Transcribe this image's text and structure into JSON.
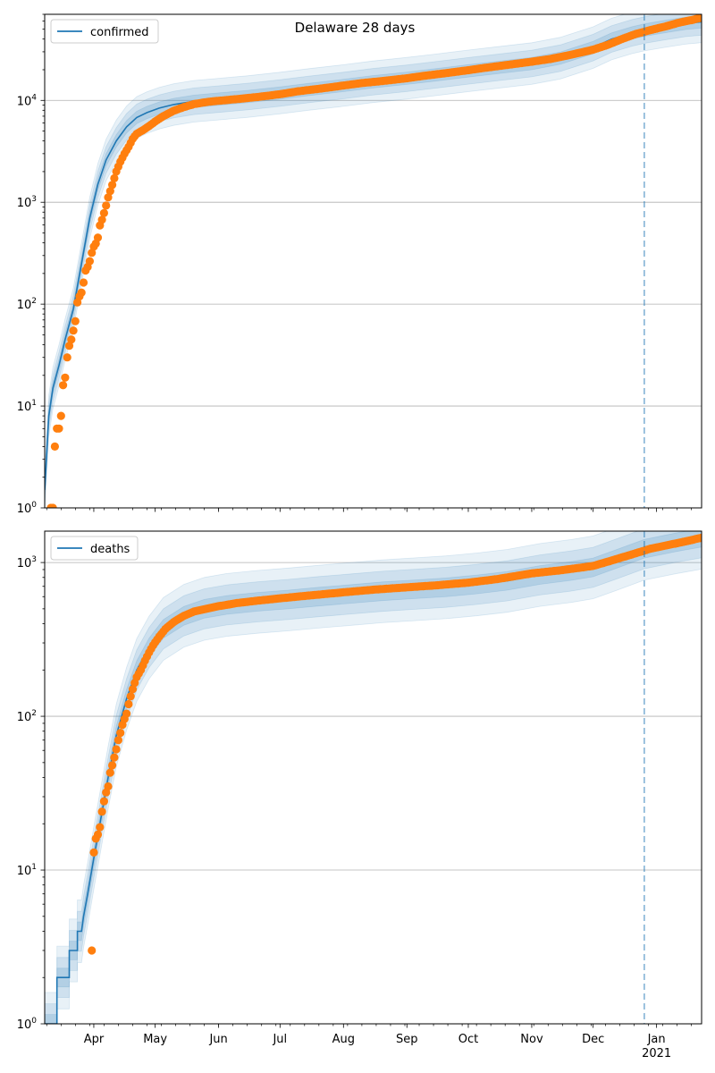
{
  "figure": {
    "title": "Delaware 28 days",
    "colors": {
      "model_line": "#1f77b4",
      "observed_points": "#ff7f0e",
      "band": "#1f77b4",
      "forecast_line": "#1f77b4",
      "grid": "#b0b0b0"
    }
  },
  "chart_data": [
    {
      "type": "line",
      "title": "Delaware 28 days",
      "xlabel": "",
      "ylabel": "",
      "yscale": "log",
      "ylim": [
        1,
        70000
      ],
      "xlim": [
        "2020-03-08",
        "2021-01-23"
      ],
      "forecast_start": "2020-12-26",
      "legend": {
        "entries": [
          "confirmed"
        ],
        "placement": "upper-left"
      },
      "grid": "horizontal",
      "x_tick_labels": [],
      "y_tick_labels": [
        {
          "value": 1,
          "mantissa": "10",
          "exp": "0"
        },
        {
          "value": 10,
          "mantissa": "10",
          "exp": "1"
        },
        {
          "value": 100,
          "mantissa": "10",
          "exp": "2"
        },
        {
          "value": 1000,
          "mantissa": "10",
          "exp": "3"
        },
        {
          "value": 10000,
          "mantissa": "10",
          "exp": "4"
        }
      ],
      "series": [
        {
          "name": "confirmed",
          "role": "model",
          "x": [
            "2020-03-08",
            "2020-03-10",
            "2020-03-12",
            "2020-03-15",
            "2020-03-18",
            "2020-03-22",
            "2020-03-26",
            "2020-03-30",
            "2020-04-03",
            "2020-04-07",
            "2020-04-12",
            "2020-04-17",
            "2020-04-22",
            "2020-04-27",
            "2020-05-03",
            "2020-05-10",
            "2020-05-20",
            "2020-06-01",
            "2020-06-15",
            "2020-07-01",
            "2020-07-15",
            "2020-08-01",
            "2020-08-15",
            "2020-09-01",
            "2020-09-15",
            "2020-10-01",
            "2020-10-15",
            "2020-11-01",
            "2020-11-15",
            "2020-12-01",
            "2020-12-10",
            "2020-12-20",
            "2020-12-26",
            "2021-01-05",
            "2021-01-15",
            "2021-01-23"
          ],
          "y": [
            1.5,
            8,
            15,
            25,
            45,
            90,
            250,
            700,
            1500,
            2600,
            4000,
            5500,
            6800,
            7600,
            8400,
            9100,
            9800,
            10300,
            10900,
            11800,
            12800,
            14000,
            15200,
            16500,
            17800,
            19500,
            21000,
            23000,
            26000,
            33000,
            40000,
            46000,
            49000,
            53000,
            57000,
            59000
          ]
        },
        {
          "name": "",
          "role": "observed",
          "x": [
            "2020-03-11",
            "2020-03-12",
            "2020-03-13",
            "2020-03-14",
            "2020-03-15",
            "2020-03-16",
            "2020-03-17",
            "2020-03-18",
            "2020-03-19",
            "2020-03-20",
            "2020-03-21",
            "2020-03-22",
            "2020-03-23",
            "2020-03-24",
            "2020-03-25",
            "2020-03-26",
            "2020-03-27",
            "2020-03-28",
            "2020-03-29",
            "2020-03-30",
            "2020-03-31",
            "2020-04-01",
            "2020-04-02",
            "2020-04-03",
            "2020-04-04",
            "2020-04-05",
            "2020-04-06",
            "2020-04-07",
            "2020-04-08",
            "2020-04-10",
            "2020-04-12",
            "2020-04-14",
            "2020-04-16",
            "2020-04-18",
            "2020-04-20",
            "2020-04-22",
            "2020-04-25",
            "2020-04-28",
            "2020-05-01",
            "2020-05-05",
            "2020-05-10",
            "2020-05-15",
            "2020-05-20",
            "2020-05-27",
            "2020-06-03",
            "2020-06-10",
            "2020-06-20",
            "2020-07-01",
            "2020-07-10",
            "2020-07-20",
            "2020-08-01",
            "2020-08-10",
            "2020-08-20",
            "2020-09-01",
            "2020-09-10",
            "2020-09-20",
            "2020-10-01",
            "2020-10-10",
            "2020-10-20",
            "2020-11-01",
            "2020-11-10",
            "2020-11-20",
            "2020-12-01",
            "2020-12-08",
            "2020-12-15",
            "2020-12-22",
            "2020-12-29",
            "2021-01-05",
            "2021-01-12",
            "2021-01-19",
            "2021-01-23"
          ],
          "y": [
            1,
            1,
            4,
            6,
            6,
            8,
            16,
            19,
            30,
            39,
            45,
            55,
            68,
            104,
            119,
            130,
            163,
            214,
            232,
            264,
            319,
            368,
            393,
            450,
            593,
            673,
            783,
            928,
            1116,
            1479,
            2000,
            2500,
            3000,
            3500,
            4200,
            4700,
            5100,
            5600,
            6200,
            7000,
            7900,
            8600,
            9200,
            9700,
            10000,
            10300,
            10800,
            11500,
            12300,
            13000,
            14000,
            14800,
            15500,
            16500,
            17500,
            18500,
            19800,
            21000,
            22300,
            24000,
            25500,
            28000,
            31500,
            35000,
            40000,
            45000,
            49000,
            53000,
            58000,
            62000,
            65000
          ]
        }
      ]
    },
    {
      "type": "line",
      "title": "",
      "xlabel": "",
      "ylabel": "",
      "yscale": "log",
      "ylim": [
        1,
        1600
      ],
      "xlim": [
        "2020-03-08",
        "2021-01-23"
      ],
      "forecast_start": "2020-12-26",
      "legend": {
        "entries": [
          "deaths"
        ],
        "placement": "upper-left"
      },
      "grid": "horizontal",
      "x_tick_labels": [
        "Apr",
        "May",
        "Jun",
        "Jul",
        "Aug",
        "Sep",
        "Oct",
        "Nov",
        "Dec",
        "Jan\n2021"
      ],
      "y_tick_labels": [
        {
          "value": 1,
          "mantissa": "10",
          "exp": "0"
        },
        {
          "value": 10,
          "mantissa": "10",
          "exp": "1"
        },
        {
          "value": 100,
          "mantissa": "10",
          "exp": "2"
        },
        {
          "value": 1000,
          "mantissa": "10",
          "exp": "3"
        }
      ],
      "series": [
        {
          "name": "deaths",
          "role": "model",
          "x": [
            "2020-03-08",
            "2020-03-14",
            "2020-03-14",
            "2020-03-20",
            "2020-03-20",
            "2020-03-24",
            "2020-03-24",
            "2020-03-26",
            "2020-03-27",
            "2020-03-29",
            "2020-04-01",
            "2020-04-04",
            "2020-04-08",
            "2020-04-12",
            "2020-04-17",
            "2020-04-22",
            "2020-04-28",
            "2020-05-05",
            "2020-05-15",
            "2020-05-25",
            "2020-06-05",
            "2020-06-20",
            "2020-07-05",
            "2020-07-20",
            "2020-08-05",
            "2020-08-20",
            "2020-09-05",
            "2020-09-20",
            "2020-10-05",
            "2020-10-20",
            "2020-11-05",
            "2020-11-20",
            "2020-12-01",
            "2020-12-12",
            "2020-12-26",
            "2021-01-10",
            "2021-01-23"
          ],
          "y": [
            1,
            1,
            2,
            2,
            3,
            3,
            4,
            4,
            5,
            7,
            12,
            20,
            40,
            75,
            130,
            200,
            280,
            370,
            450,
            500,
            530,
            555,
            575,
            600,
            625,
            650,
            670,
            690,
            720,
            760,
            830,
            880,
            930,
            1050,
            1230,
            1350,
            1450
          ]
        },
        {
          "name": "",
          "role": "observed",
          "x": [
            "2020-03-31",
            "2020-04-01",
            "2020-04-02",
            "2020-04-03",
            "2020-04-04",
            "2020-04-05",
            "2020-04-06",
            "2020-04-07",
            "2020-04-08",
            "2020-04-09",
            "2020-04-10",
            "2020-04-11",
            "2020-04-12",
            "2020-04-13",
            "2020-04-14",
            "2020-04-15",
            "2020-04-16",
            "2020-04-17",
            "2020-04-18",
            "2020-04-19",
            "2020-04-20",
            "2020-04-21",
            "2020-04-22",
            "2020-04-24",
            "2020-04-26",
            "2020-04-28",
            "2020-04-30",
            "2020-05-03",
            "2020-05-06",
            "2020-05-10",
            "2020-05-15",
            "2020-05-20",
            "2020-05-26",
            "2020-06-01",
            "2020-06-10",
            "2020-06-20",
            "2020-07-01",
            "2020-07-15",
            "2020-08-01",
            "2020-08-15",
            "2020-09-01",
            "2020-09-15",
            "2020-10-01",
            "2020-10-15",
            "2020-11-01",
            "2020-11-15",
            "2020-12-01",
            "2020-12-10",
            "2020-12-20",
            "2020-12-29",
            "2021-01-08",
            "2021-01-16",
            "2021-01-23"
          ],
          "y": [
            3,
            13,
            16,
            17,
            19,
            24,
            28,
            32,
            35,
            43,
            48,
            54,
            61,
            70,
            78,
            88,
            96,
            104,
            120,
            135,
            150,
            165,
            180,
            200,
            230,
            260,
            290,
            330,
            370,
            410,
            450,
            480,
            500,
            520,
            545,
            565,
            585,
            610,
            640,
            665,
            690,
            710,
            740,
            780,
            850,
            890,
            950,
            1030,
            1130,
            1230,
            1310,
            1380,
            1450
          ]
        }
      ]
    }
  ]
}
